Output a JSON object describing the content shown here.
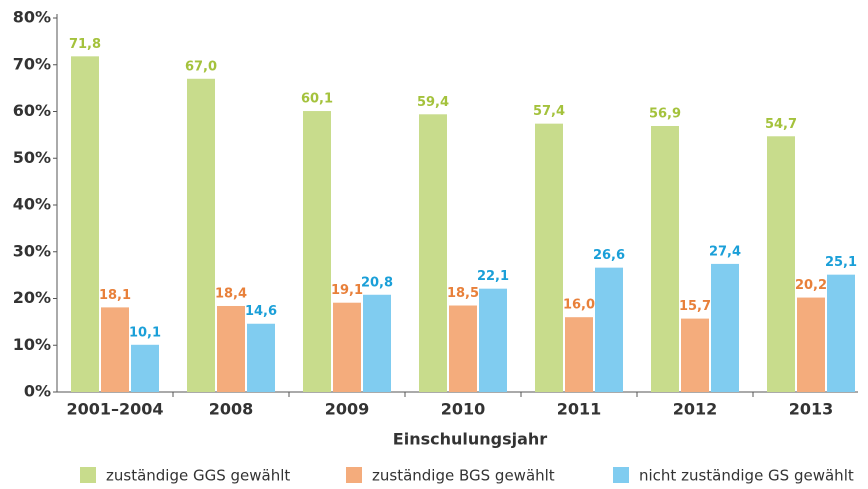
{
  "chart_data": {
    "type": "bar",
    "x_label": "Einschulungsjahr",
    "categories": [
      "2001–2004",
      "2008",
      "2009",
      "2010",
      "2011",
      "2012",
      "2013"
    ],
    "series": [
      {
        "name": "zuständige GGS gewählt",
        "color": "#c8dc8c",
        "label_color": "#a4c23c",
        "values": [
          71.8,
          67.0,
          60.1,
          59.4,
          57.4,
          56.9,
          54.7
        ],
        "value_labels": [
          "71,8",
          "67,0",
          "60,1",
          "59,4",
          "57,4",
          "56,9",
          "54,7"
        ]
      },
      {
        "name": "zuständige BGS gewählt",
        "color": "#f4ac7c",
        "label_color": "#e8803a",
        "values": [
          18.1,
          18.4,
          19.1,
          18.5,
          16.0,
          15.7,
          20.2
        ],
        "value_labels": [
          "18,1",
          "18,4",
          "19,1",
          "18,5",
          "16,0",
          "15,7",
          "20,2"
        ]
      },
      {
        "name": "nicht zuständige GS gewählt",
        "color": "#80ccf0",
        "label_color": "#1a9fd8",
        "values": [
          10.1,
          14.6,
          20.8,
          22.1,
          26.6,
          27.4,
          25.1
        ],
        "value_labels": [
          "10,1",
          "14,6",
          "20,8",
          "22,1",
          "26,6",
          "27,4",
          "25,1"
        ]
      }
    ],
    "ylim": [
      0,
      80
    ],
    "yticks": [
      {
        "value": 0,
        "label": "0%"
      },
      {
        "value": 10,
        "label": "10%"
      },
      {
        "value": 20,
        "label": "20%"
      },
      {
        "value": 30,
        "label": "30%"
      },
      {
        "value": 40,
        "label": "40%"
      },
      {
        "value": 50,
        "label": "50%"
      },
      {
        "value": 60,
        "label": "60%"
      },
      {
        "value": 70,
        "label": "70%"
      },
      {
        "value": 80,
        "label": "80%"
      }
    ],
    "grid": false
  }
}
